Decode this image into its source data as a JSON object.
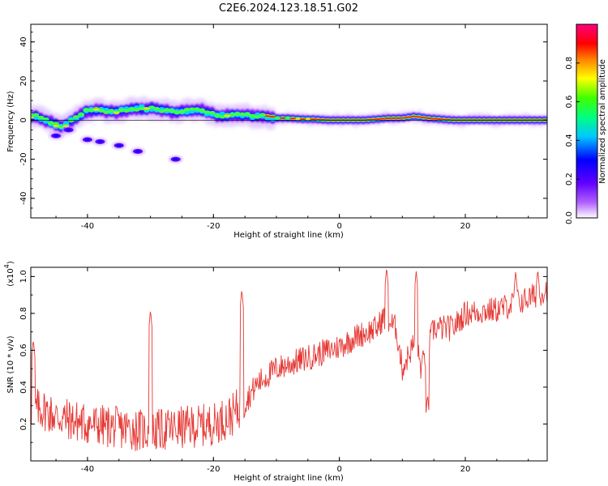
{
  "title": "C2E6.2024.123.18.51.G02",
  "chart_data": [
    {
      "type": "heatmap",
      "name": "spectrogram",
      "xlabel": "Height of straight line (km)",
      "ylabel": "Frequency (Hz)",
      "xlim": [
        -49,
        33
      ],
      "ylim": [
        -50,
        49
      ],
      "x_ticks": [
        -40,
        -20,
        0,
        20
      ],
      "x_tick_labels": [
        "-40",
        "-20",
        "0",
        "20"
      ],
      "y_ticks": [
        -40,
        -20,
        0,
        20,
        40
      ],
      "y_tick_labels": [
        "-40",
        "-20",
        "0",
        "20",
        "40"
      ],
      "colorbar": {
        "label": "Normalized spectral amplitude",
        "range": [
          0,
          1
        ],
        "ticks": [
          0.0,
          0.2,
          0.4,
          0.6,
          0.8
        ],
        "tick_labels": [
          "0.0",
          "0.2",
          "0.4",
          "0.6",
          "0.8"
        ],
        "colormap": [
          "#ffffff",
          "#8000ff",
          "#0000ff",
          "#00ffff",
          "#00ff00",
          "#ffff00",
          "#ff0000",
          "#ff0080"
        ]
      },
      "ridge": {
        "description_points_x": [
          -48,
          -46,
          -44,
          -42,
          -40,
          -38,
          -36,
          -34,
          -32,
          -30,
          -28,
          -26,
          -24,
          -22,
          -20,
          -18,
          -16,
          -14,
          -12,
          -10,
          -8,
          -6,
          -4,
          -2,
          0,
          2,
          4,
          6,
          8,
          10,
          12,
          14,
          16,
          18,
          20,
          22,
          24,
          26,
          28,
          30,
          32
        ],
        "frequency_hz": [
          2,
          -1,
          -4,
          1,
          5,
          5,
          4,
          5,
          6,
          6,
          5,
          4,
          5,
          5,
          3,
          2,
          3,
          2,
          2,
          1,
          1,
          0.5,
          0.5,
          0,
          0,
          0,
          0,
          0.5,
          1,
          1,
          2,
          1,
          0.5,
          0,
          0,
          0,
          0,
          0,
          0,
          0,
          0
        ]
      },
      "side_blobs": [
        {
          "x": -45,
          "y": -8
        },
        {
          "x": -43,
          "y": -5
        },
        {
          "x": -40,
          "y": -10
        },
        {
          "x": -38,
          "y": -11
        },
        {
          "x": -35,
          "y": -13
        },
        {
          "x": -32,
          "y": -16
        },
        {
          "x": -26,
          "y": -20
        }
      ]
    },
    {
      "type": "line",
      "name": "snr",
      "xlabel": "Height of straight line (km)",
      "ylabel": "SNR (10 * v/v)",
      "y_multiplier_label": "(x10",
      "y_multiplier_exp": "4",
      "xlim": [
        -49,
        33
      ],
      "ylim": [
        0,
        1.05
      ],
      "x_ticks": [
        -40,
        -20,
        0,
        20
      ],
      "x_tick_labels": [
        "-40",
        "-20",
        "0",
        "20"
      ],
      "y_ticks": [
        0.2,
        0.4,
        0.6,
        0.8,
        1.0
      ],
      "y_tick_labels": [
        "0.2",
        "0.4",
        "0.6",
        "0.8",
        "1.0"
      ],
      "line_color": "#e53935",
      "trend_x": [
        -49,
        -47,
        -45,
        -40,
        -35,
        -30,
        -25,
        -20,
        -17,
        -15,
        -13,
        -10,
        -5,
        0,
        3,
        6,
        7,
        9,
        10,
        12,
        13,
        15,
        18,
        20,
        25,
        30,
        33
      ],
      "trend_y": [
        0.28,
        0.28,
        0.24,
        0.2,
        0.18,
        0.16,
        0.18,
        0.2,
        0.25,
        0.32,
        0.42,
        0.5,
        0.56,
        0.62,
        0.68,
        0.72,
        0.78,
        0.72,
        0.5,
        0.65,
        0.5,
        0.72,
        0.72,
        0.8,
        0.82,
        0.88,
        0.93
      ],
      "noise_amplitude": 0.09,
      "spikes": [
        {
          "x": -48.6,
          "y": 0.66
        },
        {
          "x": -30.0,
          "y": 0.82
        },
        {
          "x": -15.5,
          "y": 0.93
        },
        {
          "x": 7.5,
          "y": 1.05
        },
        {
          "x": 12.2,
          "y": 1.03
        },
        {
          "x": 14.0,
          "y": 0.36
        },
        {
          "x": 28.0,
          "y": 1.03
        },
        {
          "x": 31.5,
          "y": 1.04
        }
      ],
      "n_points": 900
    }
  ]
}
